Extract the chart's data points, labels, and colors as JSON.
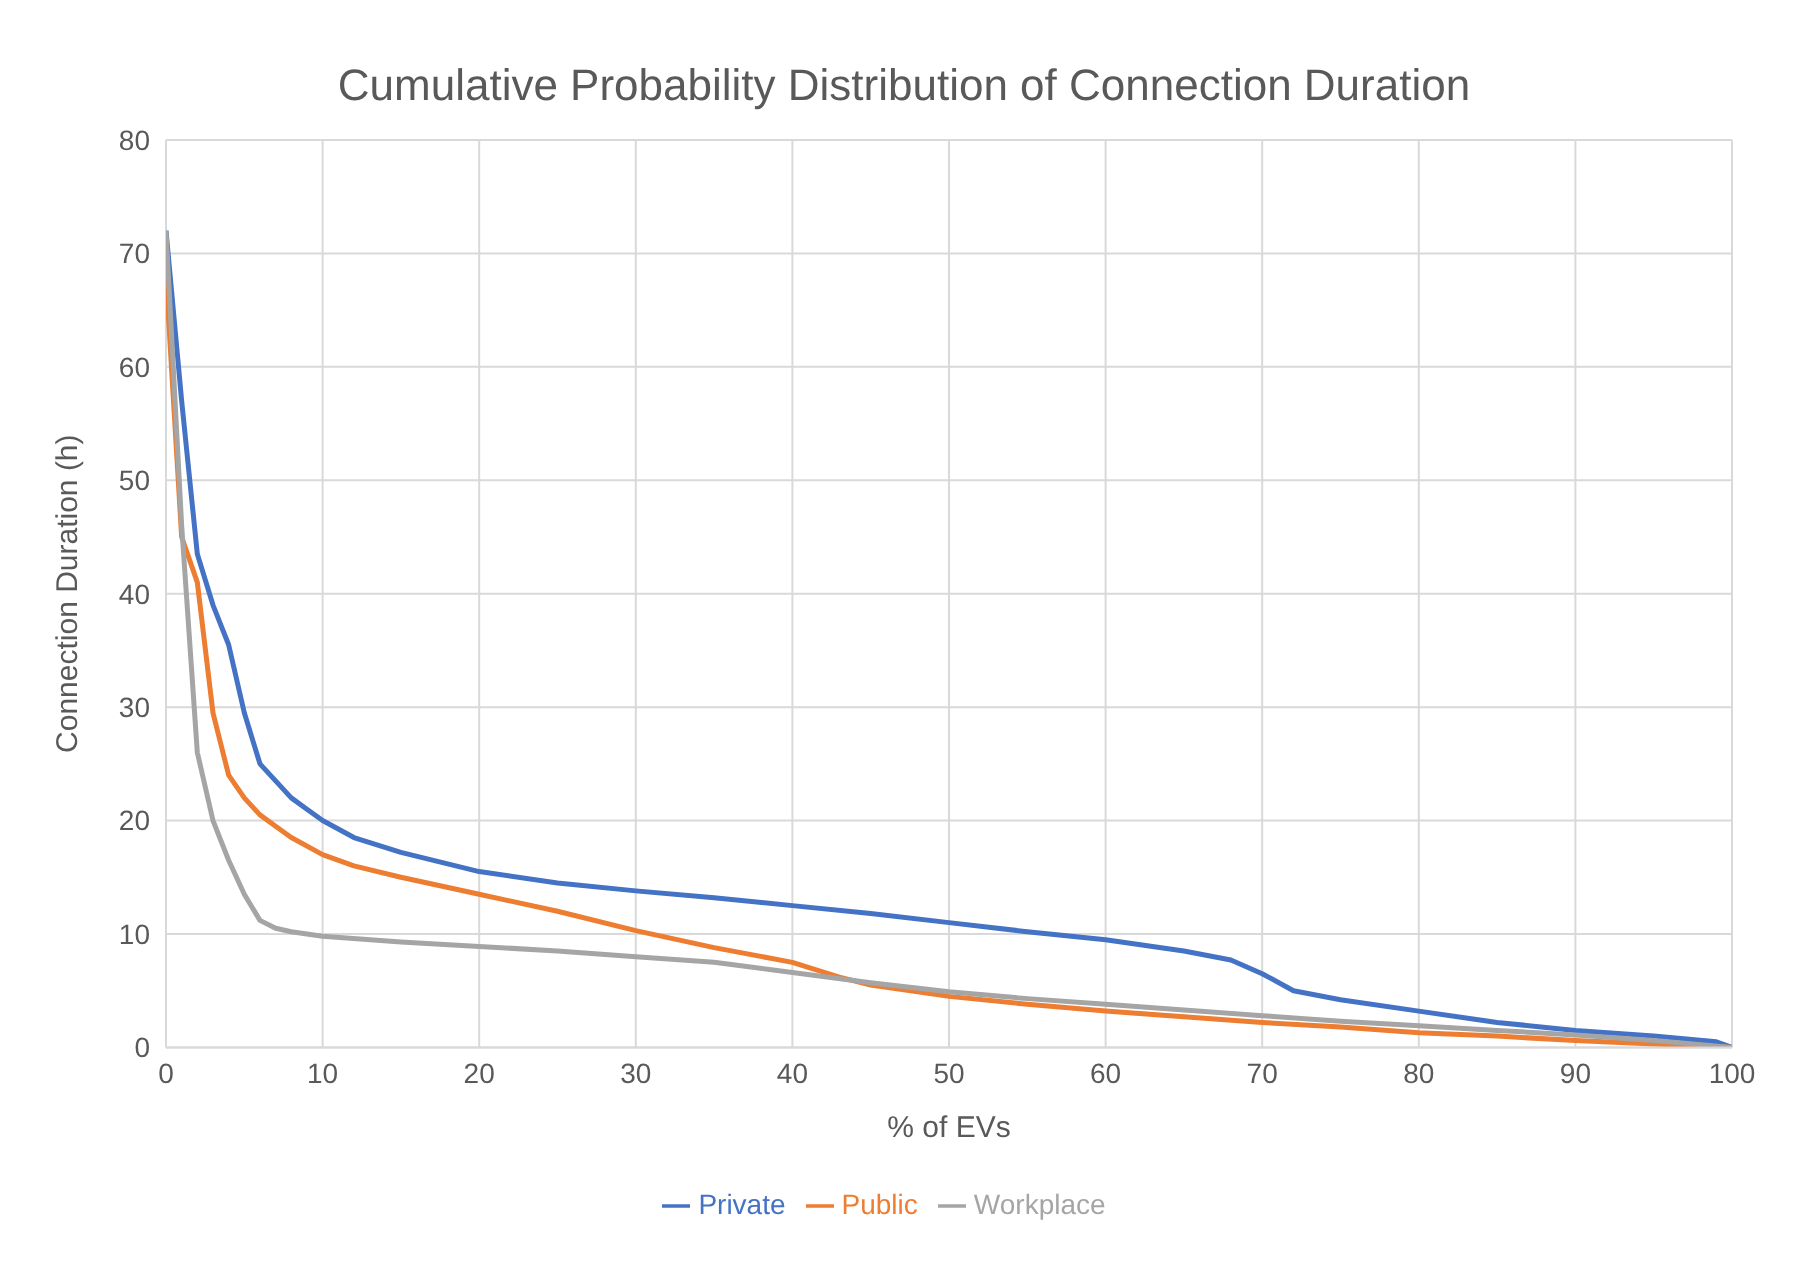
{
  "chart_data": {
    "type": "line",
    "title": "Cumulative Probability Distribution of Connection Duration",
    "xlabel": "% of EVs",
    "ylabel": "Connection Duration (h)",
    "xlim": [
      0,
      100
    ],
    "xticks": [
      0,
      10,
      20,
      30,
      40,
      50,
      60,
      70,
      80,
      90,
      100
    ],
    "ylim": [
      0,
      80
    ],
    "yticks": [
      0,
      10,
      20,
      30,
      40,
      50,
      60,
      70,
      80
    ],
    "grid": true,
    "legend": "bottom",
    "marker": "none",
    "line_style": "solid",
    "series": [
      {
        "name": "Private",
        "color": "#4472c4",
        "x": [
          0,
          1,
          2,
          3,
          4,
          5,
          6,
          7,
          8,
          9,
          10,
          12,
          15,
          20,
          25,
          30,
          35,
          40,
          45,
          50,
          55,
          60,
          65,
          68,
          70,
          72,
          75,
          80,
          85,
          90,
          95,
          99,
          100
        ],
        "values": [
          72,
          57,
          43.5,
          39,
          35.5,
          29.5,
          25,
          23.5,
          22,
          21,
          20,
          18.5,
          17.2,
          15.5,
          14.5,
          13.8,
          13.2,
          12.5,
          11.8,
          11,
          10.2,
          9.5,
          8.5,
          7.7,
          6.5,
          5,
          4.2,
          3.2,
          2.2,
          1.5,
          1,
          0.5,
          0
        ]
      },
      {
        "name": "Public",
        "color": "#ed7d31",
        "x": [
          0,
          1,
          2,
          3,
          4,
          5,
          6,
          7,
          8,
          10,
          12,
          15,
          20,
          25,
          30,
          35,
          40,
          43,
          45,
          50,
          55,
          60,
          65,
          70,
          75,
          80,
          85,
          90,
          95,
          100
        ],
        "values": [
          68,
          45,
          41,
          29.5,
          24,
          22,
          20.5,
          19.5,
          18.5,
          17,
          16,
          15,
          13.5,
          12,
          10.3,
          8.8,
          7.5,
          6.2,
          5.5,
          4.5,
          3.8,
          3.2,
          2.7,
          2.2,
          1.8,
          1.3,
          1,
          0.6,
          0.3,
          0
        ]
      },
      {
        "name": "Workplace",
        "color": "#a5a5a5",
        "x": [
          0,
          1,
          2,
          3,
          4,
          5,
          6,
          7,
          8,
          10,
          15,
          20,
          25,
          30,
          35,
          40,
          45,
          50,
          55,
          60,
          65,
          70,
          75,
          80,
          85,
          90,
          95,
          100
        ],
        "values": [
          72,
          46,
          26,
          20,
          16.5,
          13.5,
          11.2,
          10.5,
          10.2,
          9.8,
          9.3,
          8.9,
          8.5,
          8,
          7.5,
          6.6,
          5.7,
          4.9,
          4.3,
          3.8,
          3.3,
          2.8,
          2.3,
          1.9,
          1.5,
          1.1,
          0.6,
          0
        ]
      }
    ]
  }
}
